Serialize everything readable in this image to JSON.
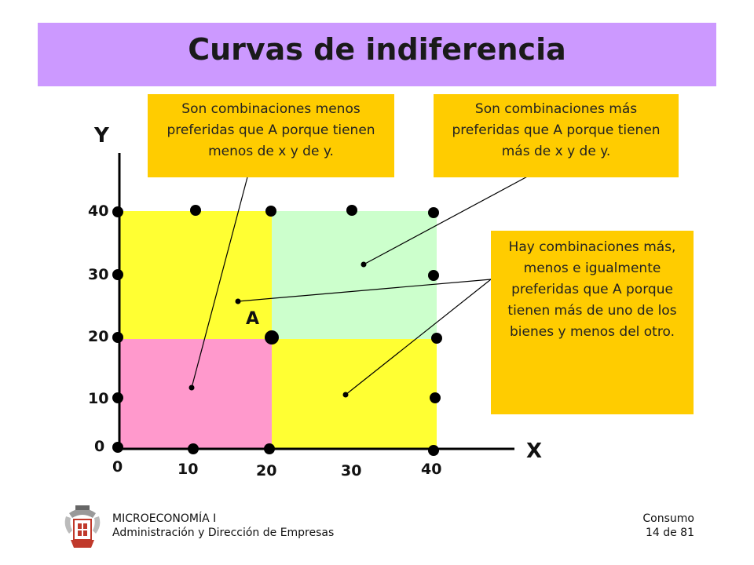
{
  "title": "Curvas de indiferencia",
  "callouts": {
    "less": "Son combinaciones menos preferidas que A porque tienen menos de x y de y.",
    "more": "Son combinaciones más preferidas que A porque tienen más de x y de y.",
    "mixed": "Hay combinaciones más, menos e igualmente preferidas que A porque tienen más de uno de los bienes y menos del otro."
  },
  "axes": {
    "y_label": "Y",
    "x_label": "X",
    "y_ticks": [
      "40",
      "30",
      "20",
      "10",
      "0"
    ],
    "x_ticks": [
      "0",
      "10",
      "20",
      "30",
      "40"
    ]
  },
  "point_label": "A",
  "colors": {
    "title_bar": "#cc99ff",
    "callout": "#ffcc00",
    "yellow_region": "#ffff33",
    "green_region": "#ccffcc",
    "pink_region": "#ff99cc"
  },
  "footer": {
    "course": "MICROECONOMÍA I",
    "program": "Administración y Dirección de Empresas",
    "section": "Consumo",
    "page": "14 de 81"
  }
}
